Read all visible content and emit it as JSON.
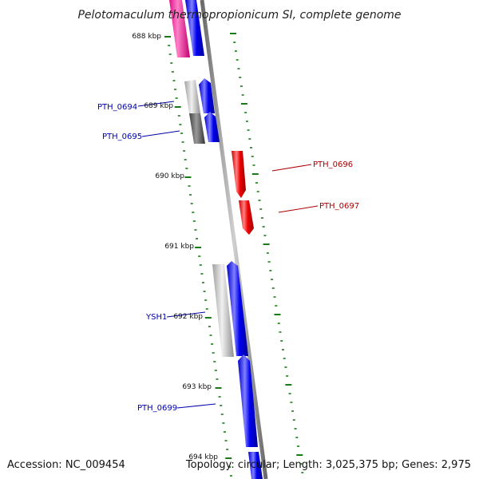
{
  "title": "Pelotomaculum thermopropionicum SI, complete genome",
  "footer": {
    "accession": "Accession: NC_009454",
    "topology": "Topology: circular; Length: 3,025,375 bp; Genes: 2,975"
  },
  "colors": {
    "backbone": "#8a8a8a",
    "tick": "#1a7a1a",
    "forward_gene": "#0000ee",
    "reverse_gene": "#ee0000",
    "magenta_gene": "#ff1493",
    "grey_gene": "#b0b0b0",
    "dark_grey_gene": "#555555",
    "blue_label": "#0000aa",
    "red_label": "#aa0000"
  },
  "kbp_labels": [
    "688 kbp",
    "689 kbp",
    "690 kbp",
    "691 kbp",
    "692 kbp",
    "693 kbp",
    "694 kbp"
  ],
  "gene_labels": [
    {
      "text": "PTH_0694",
      "color": "blue"
    },
    {
      "text": "PTH_0695",
      "color": "blue"
    },
    {
      "text": "PTH_0696",
      "color": "red"
    },
    {
      "text": "PTH_0697",
      "color": "red"
    },
    {
      "text": "YSH1",
      "color": "blue"
    },
    {
      "text": "PTH_0699",
      "color": "blue"
    }
  ]
}
